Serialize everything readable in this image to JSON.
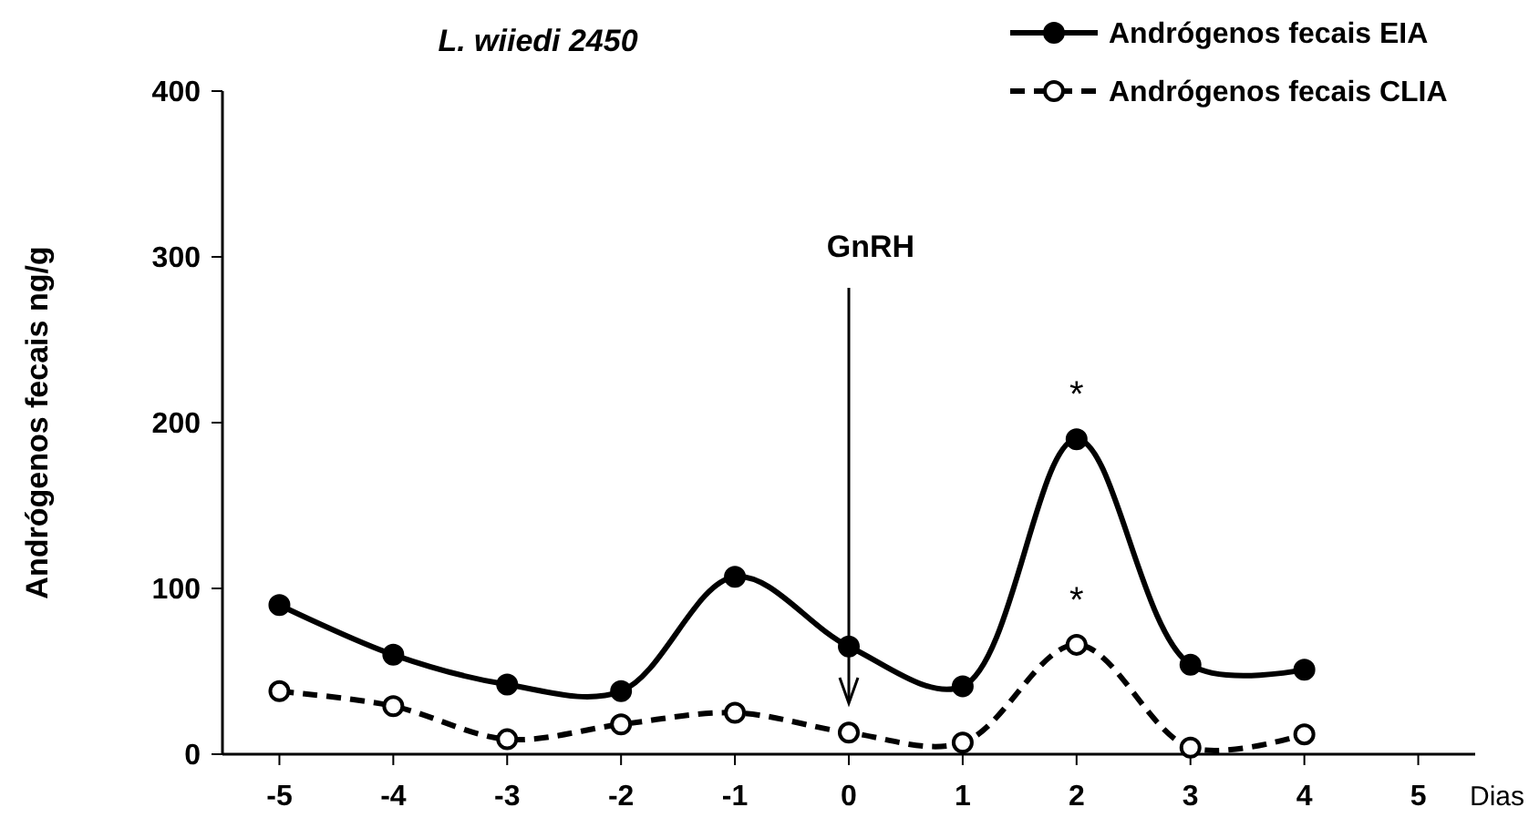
{
  "chart_data": {
    "type": "line",
    "title": "L. wiiedi  2450",
    "xlabel": "Dias",
    "ylabel": "Andrógenos fecais ng/g",
    "x": [
      -5,
      -4,
      -3,
      -2,
      -1,
      0,
      1,
      2,
      3,
      4
    ],
    "series": [
      {
        "name": "Andrógenos fecais EIA",
        "color": "#000000",
        "values": [
          90,
          60,
          42,
          38,
          107,
          65,
          41,
          190,
          54,
          51
        ],
        "line_style": "solid",
        "marker": "circle"
      },
      {
        "name": "Andrógenos fecais CLIA",
        "color": "#000000",
        "values": [
          38,
          29,
          9,
          18,
          25,
          13,
          7,
          66,
          4,
          12
        ],
        "line_style": "dashed",
        "marker": "circle"
      }
    ],
    "xlim": [
      -5.5,
      5.5
    ],
    "xticks": [
      -5,
      -4,
      -3,
      -2,
      -1,
      0,
      1,
      2,
      3,
      4,
      5
    ],
    "ylim": [
      0,
      400
    ],
    "yticks": [
      0,
      100,
      200,
      300,
      400
    ],
    "grid": false,
    "legend": "top right",
    "ref_lines": [
      {
        "axis": "x",
        "value": 0,
        "label": "GnRH"
      }
    ],
    "annotations": [
      {
        "text": "*",
        "x": 2,
        "y": 190
      },
      {
        "text": "*",
        "x": 2,
        "y": 66
      }
    ]
  }
}
